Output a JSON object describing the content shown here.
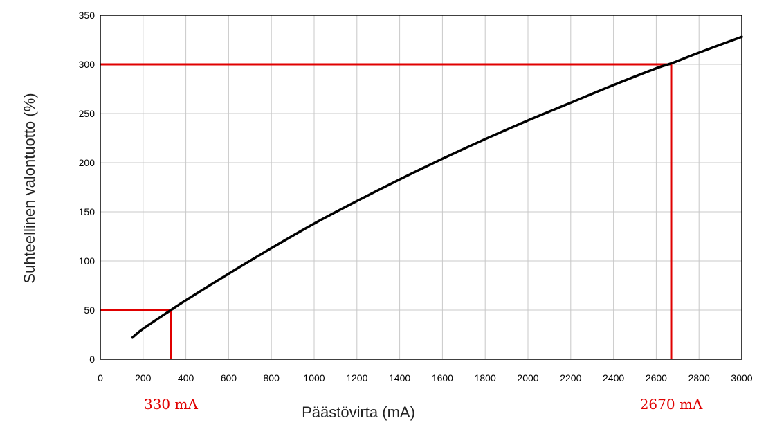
{
  "chart_data": {
    "type": "line",
    "title": "",
    "xlabel": "Päästövirta (mA)",
    "ylabel": "Suhteellinen valontuotto (%)",
    "xlim": [
      0,
      3000
    ],
    "ylim": [
      0,
      350
    ],
    "xticks": [
      0,
      200,
      400,
      600,
      800,
      1000,
      1200,
      1400,
      1600,
      1800,
      2000,
      2200,
      2400,
      2600,
      2800,
      3000
    ],
    "yticks": [
      0,
      50,
      100,
      150,
      200,
      250,
      300,
      350
    ],
    "grid": true,
    "series": [
      {
        "color": "#000000",
        "x": [
          150,
          200,
          330,
          400,
          600,
          800,
          1000,
          1200,
          1400,
          1600,
          1800,
          2000,
          2200,
          2400,
          2600,
          2670,
          2800,
          3000
        ],
        "y": [
          22,
          31,
          50,
          60,
          87,
          113,
          138,
          161,
          183,
          204,
          224,
          243,
          261,
          279,
          296,
          301,
          312,
          328
        ]
      }
    ],
    "reference_lines": [
      {
        "color": "#e00000",
        "x": 330,
        "y": 50
      },
      {
        "color": "#e00000",
        "x": 2670,
        "y": 300
      }
    ],
    "annotations": [
      {
        "text": "330 mA",
        "x": 330,
        "color": "#e00000"
      },
      {
        "text": "2670 mA",
        "x": 2670,
        "color": "#e00000"
      }
    ]
  }
}
